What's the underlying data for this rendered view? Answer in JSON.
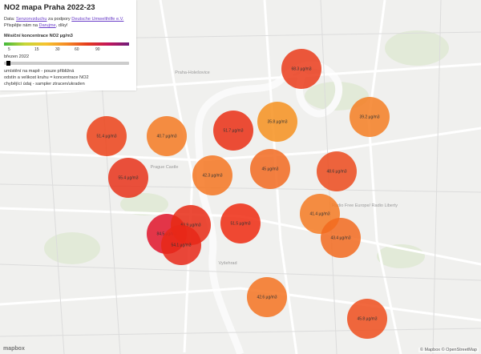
{
  "panel": {
    "title": "NO2 mapa Praha 2022-23",
    "source": {
      "prefix": "Data: ",
      "link1": "Senzorvzduchu",
      "middle": " za podpory ",
      "link2": "Deutsche Umwelthilfe e.V."
    },
    "donate": {
      "prefix": "Přispějte nám na ",
      "link": "Darujme",
      "suffix": ", díky!"
    },
    "legend_title": "Měsíční koncentrace NO2 µg/m3",
    "legend_ticks": [
      "5",
      "15",
      "30",
      "60",
      "90"
    ],
    "month": "březen 2022",
    "notes": [
      "umístění na mapě - pouze přibližná",
      "odstín a velikost kruhu = koncentrace NO2",
      "chybějící údaj - sampler ztracen/ukraden"
    ]
  },
  "places": [
    "Prague Castle",
    "Vyšehrad",
    "Radio Free Europe/ Radio Liberty",
    "Praha-Holešovice"
  ],
  "markers": [
    {
      "label": "68.3 µg/m3",
      "color": "#ea3b1a"
    },
    {
      "label": "39.2 µg/m3",
      "color": "#f47e22"
    },
    {
      "label": "35.8 µg/m3",
      "color": "#f6901f"
    },
    {
      "label": "51.7 µg/m3",
      "color": "#ea2f14"
    },
    {
      "label": "40.7 µg/m3",
      "color": "#f47a22"
    },
    {
      "label": "51.4 µg/m3",
      "color": "#ec4219"
    },
    {
      "label": "45 µg/m3",
      "color": "#f26a20"
    },
    {
      "label": "48.6 µg/m3",
      "color": "#ec4a1c"
    },
    {
      "label": "42.3 µg/m3",
      "color": "#f47621"
    },
    {
      "label": "55.4 µg/m3",
      "color": "#e8321a"
    },
    {
      "label": "41.4 µg/m3",
      "color": "#f47a22"
    },
    {
      "label": "43.4 µg/m3",
      "color": "#f26a1e"
    },
    {
      "label": "84.5 µg/m3",
      "color": "#e0142a"
    },
    {
      "label": "63.9 µg/m3",
      "color": "#e82a14"
    },
    {
      "label": "54.1 µg/m3",
      "color": "#e82818"
    },
    {
      "label": "51.5 µg/m3",
      "color": "#ee2a10"
    },
    {
      "label": "42.6 µg/m3",
      "color": "#f47321"
    },
    {
      "label": "45.8 µg/m3",
      "color": "#ee4d1c"
    }
  ],
  "attribution": "© Mapbox © OpenStreetMap",
  "logo": "mapbox"
}
